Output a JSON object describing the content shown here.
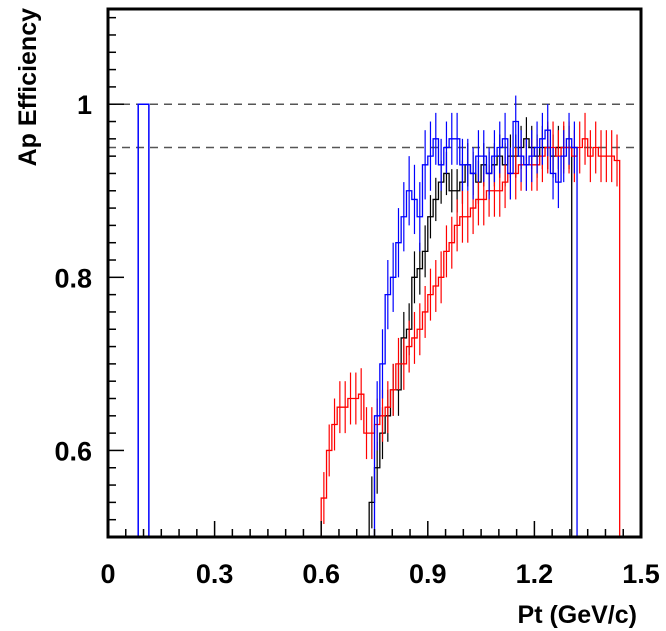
{
  "chart_data": {
    "type": "line",
    "title": "",
    "xlabel": "Pt (GeV/c)",
    "ylabel": "Ap Efficiency",
    "xlim": [
      0,
      1.5
    ],
    "ylim": [
      0.5,
      1.11
    ],
    "x_ticks": [
      "0",
      "0.3",
      "0.6",
      "0.9",
      "1.2",
      "1.5"
    ],
    "y_ticks": [
      "0.6",
      "0.8",
      "1"
    ],
    "x_tick_values": [
      0,
      0.3,
      0.6,
      0.9,
      1.2,
      1.5
    ],
    "y_tick_values": [
      0.6,
      0.8,
      1.0
    ],
    "grid": false,
    "legend": "none",
    "reference_lines": [
      {
        "y": 1.0,
        "style": "dashed",
        "color": "#555555"
      },
      {
        "y": 0.95,
        "style": "dashed",
        "color": "#555555"
      }
    ],
    "bin_width": 0.015,
    "series": [
      {
        "color": "#000000",
        "x_start": 0.735,
        "values": [
          0.54,
          0.58,
          0.62,
          0.64,
          0.67,
          0.67,
          0.73,
          0.74,
          0.8,
          0.81,
          0.83,
          0.87,
          0.89,
          0.91,
          0.92,
          0.9,
          0.9,
          0.91,
          0.93,
          0.92,
          0.91,
          0.93,
          0.92,
          0.93,
          0.94,
          0.93,
          0.94,
          0.94,
          0.95,
          0.96,
          0.95,
          0.94,
          0.95,
          0.95,
          0.94,
          0.95,
          0.95,
          0.95
        ],
        "errors": [
          0.03,
          0.03,
          0.03,
          0.03,
          0.03,
          0.03,
          0.03,
          0.03,
          0.03,
          0.03,
          0.03,
          0.025,
          0.025,
          0.025,
          0.025,
          0.025,
          0.025,
          0.025,
          0.025,
          0.025,
          0.025,
          0.025,
          0.025,
          0.025,
          0.025,
          0.025,
          0.025,
          0.025,
          0.025,
          0.025,
          0.025,
          0.025,
          0.025,
          0.025,
          0.025,
          0.025,
          0.025,
          0.025
        ]
      },
      {
        "color": "#ff0000",
        "x_start": 0.6,
        "values": [
          0.545,
          0.6,
          0.63,
          0.65,
          0.65,
          0.66,
          0.66,
          0.665,
          0.62,
          0.62,
          0.63,
          0.64,
          0.65,
          0.67,
          0.7,
          0.7,
          0.72,
          0.73,
          0.74,
          0.76,
          0.78,
          0.79,
          0.8,
          0.83,
          0.84,
          0.86,
          0.87,
          0.87,
          0.88,
          0.89,
          0.89,
          0.9,
          0.9,
          0.9,
          0.91,
          0.92,
          0.92,
          0.93,
          0.93,
          0.93,
          0.93,
          0.94,
          0.95,
          0.95,
          0.94,
          0.95,
          0.95,
          0.94,
          0.95,
          0.96,
          0.94,
          0.95,
          0.94,
          0.94,
          0.94,
          0.935
        ],
        "errors": [
          0.03,
          0.03,
          0.03,
          0.03,
          0.03,
          0.03,
          0.03,
          0.03,
          0.03,
          0.03,
          0.03,
          0.03,
          0.03,
          0.03,
          0.03,
          0.03,
          0.03,
          0.03,
          0.03,
          0.03,
          0.03,
          0.03,
          0.03,
          0.03,
          0.03,
          0.03,
          0.03,
          0.03,
          0.03,
          0.03,
          0.03,
          0.03,
          0.03,
          0.03,
          0.03,
          0.03,
          0.03,
          0.03,
          0.03,
          0.03,
          0.03,
          0.03,
          0.03,
          0.03,
          0.03,
          0.03,
          0.03,
          0.03,
          0.03,
          0.03,
          0.03,
          0.03,
          0.03,
          0.03,
          0.03,
          0.03
        ]
      },
      {
        "color": "#0000ff",
        "x_start": 0.75,
        "values": [
          0.64,
          0.7,
          0.78,
          0.8,
          0.84,
          0.87,
          0.9,
          0.89,
          0.87,
          0.93,
          0.94,
          0.96,
          0.93,
          0.95,
          0.96,
          0.96,
          0.93,
          0.93,
          0.92,
          0.94,
          0.94,
          0.92,
          0.94,
          0.95,
          0.96,
          0.92,
          0.98,
          0.94,
          0.93,
          0.94,
          0.95,
          0.96,
          0.97,
          0.92,
          0.91,
          0.94,
          0.96,
          0.95
        ],
        "errors": [
          0.04,
          0.04,
          0.04,
          0.04,
          0.04,
          0.04,
          0.04,
          0.04,
          0.04,
          0.04,
          0.04,
          0.03,
          0.03,
          0.03,
          0.03,
          0.03,
          0.03,
          0.03,
          0.03,
          0.03,
          0.03,
          0.03,
          0.03,
          0.03,
          0.03,
          0.03,
          0.03,
          0.03,
          0.03,
          0.03,
          0.03,
          0.03,
          0.03,
          0.03,
          0.03,
          0.03,
          0.03,
          0.03
        ]
      },
      {
        "color": "#0000ff",
        "type": "single_bin",
        "x_range": [
          0.085,
          0.115
        ],
        "value": 1.0
      }
    ]
  }
}
